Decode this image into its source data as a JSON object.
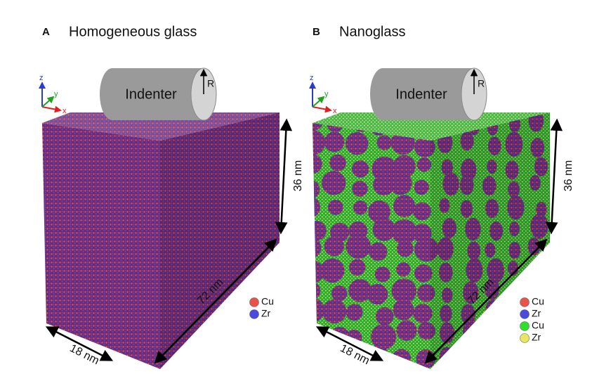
{
  "panels": [
    {
      "label": "A",
      "title": "Homogeneous glass",
      "indenter": "Indenter",
      "radius": "R",
      "axes": {
        "x": "x",
        "y": "y",
        "z": "z"
      },
      "dimensions": {
        "width": "18 nm",
        "length": "72 nm",
        "height": "36 nm"
      },
      "legend": [
        "Cu",
        "Zr"
      ]
    },
    {
      "label": "B",
      "title": "Nanoglass",
      "indenter": "Indenter",
      "radius": "R",
      "axes": {
        "x": "x",
        "y": "y",
        "z": "z"
      },
      "dimensions": {
        "width": "18 nm",
        "length": "72 nm",
        "height": "36 nm"
      },
      "legend": [
        "Cu",
        "Zr",
        "Cu",
        "Zr"
      ]
    }
  ]
}
